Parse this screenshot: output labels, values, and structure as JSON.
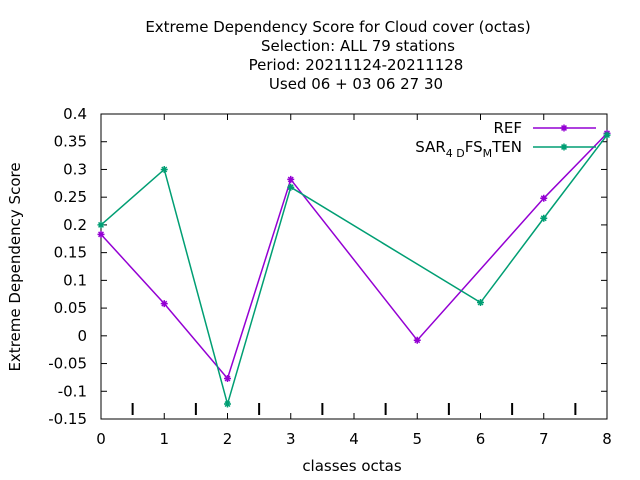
{
  "chart_data": {
    "type": "line",
    "title_lines": [
      "Extreme Dependency Score  for Cloud cover (octas)",
      "Selection: ALL     79 stations",
      "Period: 20211124-20211128",
      "Used  06 + 03 06 27 30"
    ],
    "xlabel": "classes octas",
    "ylabel": "Extreme Dependency Score",
    "x": [
      0,
      1,
      2,
      3,
      4,
      5,
      6,
      7,
      8
    ],
    "xlim": [
      0,
      8
    ],
    "ylim": [
      -0.15,
      0.4
    ],
    "x_ticks": [
      "0",
      "1",
      "2",
      "3",
      "4",
      "5",
      "6",
      "7",
      "8"
    ],
    "y_ticks": [
      "0.4",
      "0.35",
      "0.3",
      "0.25",
      "0.2",
      "0.15",
      "0.1",
      "0.05",
      "0",
      "-0.05",
      "-0.1",
      "-0.15"
    ],
    "y_tick_values": [
      0.4,
      0.35,
      0.3,
      0.25,
      0.2,
      0.15,
      0.1,
      0.05,
      0,
      -0.05,
      -0.1,
      -0.15
    ],
    "bottom_marks_x": [
      0.5,
      1.5,
      2.5,
      3.5,
      4.5,
      5.5,
      6.5,
      7.5
    ],
    "legend_position": "top-right",
    "series": [
      {
        "name": "REF",
        "color": "#9400d3",
        "x": [
          0,
          1,
          2,
          3,
          5,
          7,
          8
        ],
        "values": [
          0.183,
          0.058,
          -0.077,
          0.282,
          -0.008,
          0.248,
          0.365
        ]
      },
      {
        "name_parts": {
          "base": "SAR",
          "sub1": "4 D",
          "mid": "FS",
          "sub2": "M",
          "end": "TEN"
        },
        "color": "#009e73",
        "x": [
          0,
          1,
          2,
          3,
          6,
          7,
          8
        ],
        "values": [
          0.2,
          0.3,
          -0.123,
          0.268,
          0.06,
          0.212,
          0.362
        ]
      }
    ]
  }
}
